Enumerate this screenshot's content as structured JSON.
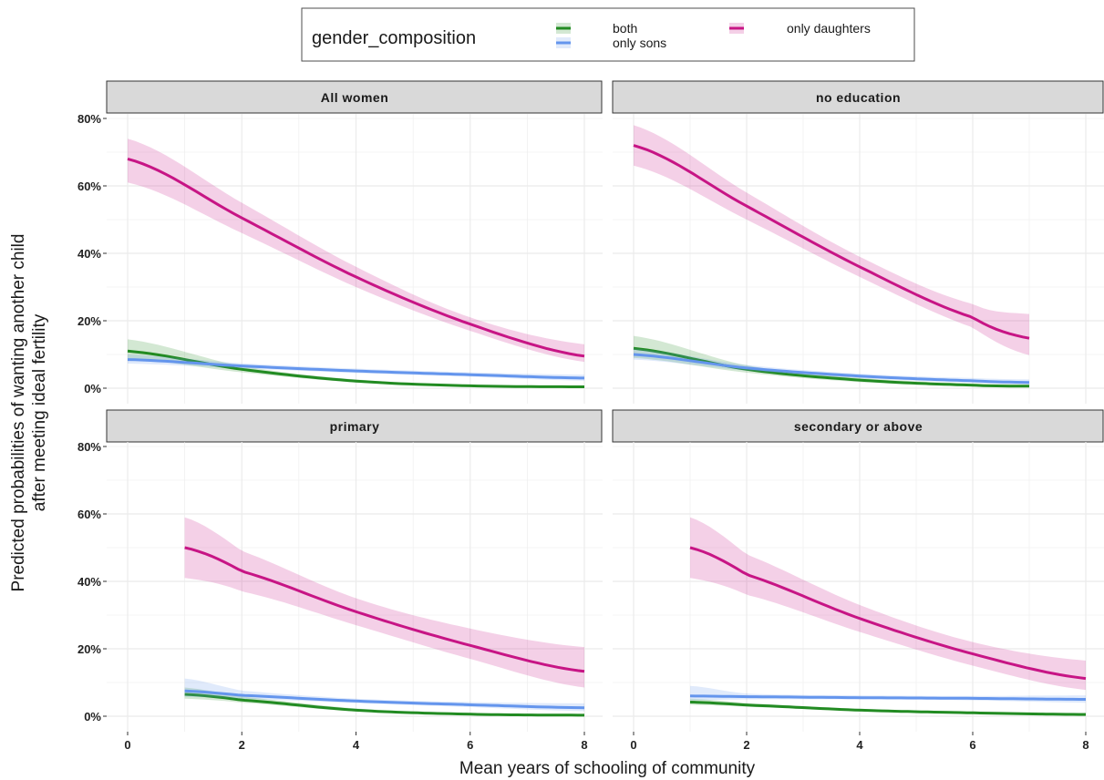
{
  "legend": {
    "title": "gender_composition",
    "entries": [
      {
        "key": "both",
        "label": "both",
        "color": "#228B22"
      },
      {
        "key": "only_sons",
        "label": "only sons",
        "color": "#6495ED"
      },
      {
        "key": "only_daughters",
        "label": "only daughters",
        "color": "#C71585"
      }
    ]
  },
  "chart_data": {
    "type": "line",
    "xlabel": "Mean years of schooling of community",
    "ylabel_line1": "Predicted probabilities of wanting another child",
    "ylabel_line2": "after meeting ideal fertility",
    "xlim": [
      0,
      8
    ],
    "ylim": [
      0,
      0.8
    ],
    "x_ticks": [
      0,
      2,
      4,
      6,
      8
    ],
    "x_tick_labels": [
      "0",
      "2",
      "4",
      "6",
      "8"
    ],
    "y_ticks": [
      0,
      0.2,
      0.4,
      0.6,
      0.8
    ],
    "y_tick_labels": [
      "0%",
      "20%",
      "40%",
      "60%",
      "80%"
    ],
    "grid": true,
    "ribbons": true,
    "panels": [
      {
        "title": "All women",
        "series": [
          {
            "name": "both",
            "x": [
              0,
              2,
              4,
              6,
              8
            ],
            "y": [
              0.11,
              0.056,
              0.021,
              0.007,
              0.004
            ],
            "lower": [
              0.088,
              0.047,
              0.017,
              0.005,
              0.002
            ],
            "upper": [
              0.145,
              0.066,
              0.026,
              0.01,
              0.008
            ]
          },
          {
            "name": "only sons",
            "x": [
              0,
              2,
              4,
              6,
              8
            ],
            "y": [
              0.085,
              0.066,
              0.051,
              0.04,
              0.03
            ],
            "lower": [
              0.073,
              0.059,
              0.045,
              0.034,
              0.022
            ],
            "upper": [
              0.1,
              0.074,
              0.058,
              0.047,
              0.04
            ]
          },
          {
            "name": "only daughters",
            "x": [
              0,
              2,
              4,
              6,
              8
            ],
            "y": [
              0.68,
              0.505,
              0.33,
              0.19,
              0.095
            ],
            "lower": [
              0.61,
              0.46,
              0.3,
              0.17,
              0.078
            ],
            "upper": [
              0.74,
              0.55,
              0.36,
              0.21,
              0.13
            ]
          }
        ]
      },
      {
        "title": "no education",
        "series": [
          {
            "name": "both",
            "x": [
              0,
              2,
              4,
              6,
              7
            ],
            "y": [
              0.118,
              0.056,
              0.024,
              0.009,
              0.006
            ],
            "lower": [
              0.09,
              0.046,
              0.018,
              0.006,
              0.003
            ],
            "upper": [
              0.155,
              0.068,
              0.031,
              0.014,
              0.011
            ]
          },
          {
            "name": "only sons",
            "x": [
              0,
              2,
              4,
              6,
              7
            ],
            "y": [
              0.1,
              0.06,
              0.036,
              0.022,
              0.017
            ],
            "lower": [
              0.085,
              0.052,
              0.03,
              0.016,
              0.011
            ],
            "upper": [
              0.118,
              0.069,
              0.043,
              0.03,
              0.026
            ]
          },
          {
            "name": "only daughters",
            "x": [
              0,
              2,
              4,
              6,
              7
            ],
            "y": [
              0.72,
              0.54,
              0.36,
              0.21,
              0.148
            ],
            "lower": [
              0.66,
              0.5,
              0.33,
              0.18,
              0.098
            ],
            "upper": [
              0.78,
              0.58,
              0.39,
              0.25,
              0.22
            ]
          }
        ]
      },
      {
        "title": "primary",
        "series": [
          {
            "name": "both",
            "x": [
              1,
              2,
              4,
              6,
              8
            ],
            "y": [
              0.065,
              0.048,
              0.018,
              0.006,
              0.003
            ],
            "lower": [
              0.052,
              0.04,
              0.014,
              0.004,
              0.001
            ],
            "upper": [
              0.085,
              0.058,
              0.023,
              0.009,
              0.007
            ]
          },
          {
            "name": "only sons",
            "x": [
              1,
              2,
              4,
              6,
              8
            ],
            "y": [
              0.075,
              0.062,
              0.045,
              0.034,
              0.025
            ],
            "lower": [
              0.058,
              0.052,
              0.039,
              0.027,
              0.015
            ],
            "upper": [
              0.112,
              0.076,
              0.052,
              0.042,
              0.038
            ]
          },
          {
            "name": "only daughters",
            "x": [
              1,
              2,
              4,
              6,
              8
            ],
            "y": [
              0.5,
              0.43,
              0.31,
              0.21,
              0.133
            ],
            "lower": [
              0.41,
              0.37,
              0.27,
              0.17,
              0.085
            ],
            "upper": [
              0.59,
              0.49,
              0.35,
              0.26,
              0.205
            ]
          }
        ]
      },
      {
        "title": "secondary or above",
        "series": [
          {
            "name": "both",
            "x": [
              1,
              2,
              4,
              6,
              8
            ],
            "y": [
              0.042,
              0.033,
              0.018,
              0.01,
              0.005
            ],
            "lower": [
              0.034,
              0.028,
              0.015,
              0.007,
              0.002
            ],
            "upper": [
              0.052,
              0.039,
              0.022,
              0.014,
              0.01
            ]
          },
          {
            "name": "only sons",
            "x": [
              1,
              2,
              4,
              6,
              8
            ],
            "y": [
              0.06,
              0.058,
              0.055,
              0.053,
              0.05
            ],
            "lower": [
              0.047,
              0.05,
              0.05,
              0.047,
              0.04
            ],
            "upper": [
              0.09,
              0.067,
              0.062,
              0.06,
              0.062
            ]
          },
          {
            "name": "only daughters",
            "x": [
              1,
              2,
              4,
              6,
              8
            ],
            "y": [
              0.5,
              0.42,
              0.29,
              0.185,
              0.112
            ],
            "lower": [
              0.41,
              0.36,
              0.25,
              0.15,
              0.078
            ],
            "upper": [
              0.59,
              0.48,
              0.33,
              0.22,
              0.165
            ]
          }
        ]
      }
    ]
  }
}
